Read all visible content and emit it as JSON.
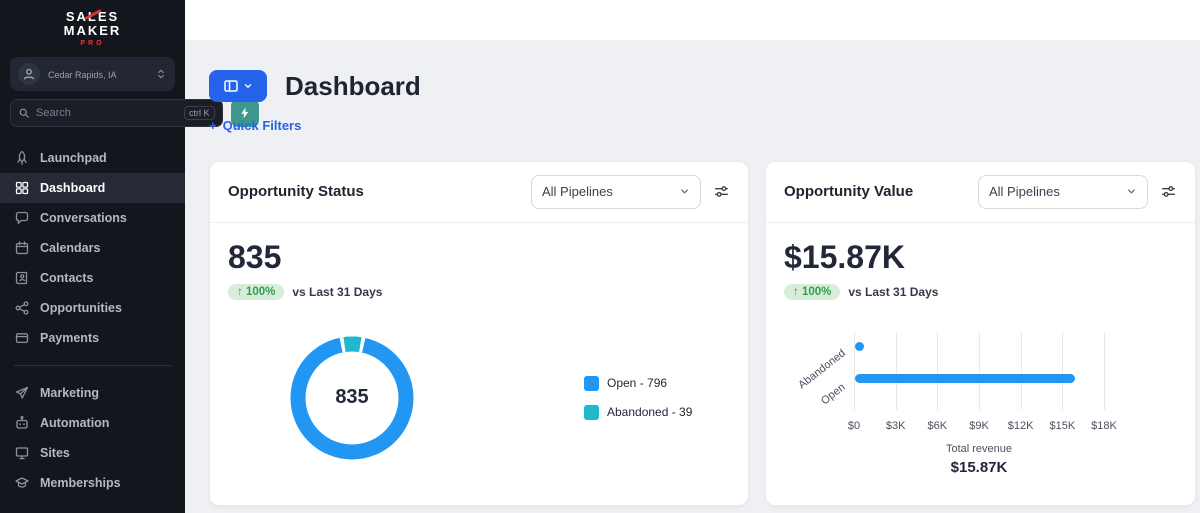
{
  "colors": {
    "accent_blue": "#2563eb",
    "chart_blue": "#2196f3",
    "chart_teal": "#1fb8cd",
    "badge_green_bg": "#d7edd9",
    "badge_green_text": "#2f9e4f",
    "teal_button": "#3f978d"
  },
  "sidebar": {
    "logo": {
      "line1": "SALES",
      "line2": "MAKER",
      "line3": "PRO"
    },
    "account": {
      "location": "Cedar Rapids, IA"
    },
    "search": {
      "placeholder": "Search",
      "shortcut": "ctrl K"
    },
    "nav": [
      {
        "label": "Launchpad",
        "icon": "rocket-icon"
      },
      {
        "label": "Dashboard",
        "icon": "grid-icon",
        "active": true
      },
      {
        "label": "Conversations",
        "icon": "chat-icon"
      },
      {
        "label": "Calendars",
        "icon": "calendar-icon"
      },
      {
        "label": "Contacts",
        "icon": "contacts-book-icon"
      },
      {
        "label": "Opportunities",
        "icon": "share-nodes-icon"
      },
      {
        "label": "Payments",
        "icon": "credit-card-icon"
      }
    ],
    "nav_secondary": [
      {
        "label": "Marketing",
        "icon": "send-icon"
      },
      {
        "label": "Automation",
        "icon": "robot-icon"
      },
      {
        "label": "Sites",
        "icon": "monitor-icon"
      },
      {
        "label": "Memberships",
        "icon": "graduation-cap-icon"
      }
    ]
  },
  "header": {
    "title": "Dashboard",
    "quick_filters_plus": "+",
    "quick_filters_label": "Quick Filters"
  },
  "cards": {
    "status": {
      "title": "Opportunity Status",
      "pipeline_filter": "All Pipelines",
      "metric": "835",
      "delta": "↑ 100%",
      "delta_caption": "vs Last 31 Days",
      "donut_center": "835",
      "legend": [
        {
          "label": "Open - 796"
        },
        {
          "label": "Abandoned - 39"
        }
      ]
    },
    "value": {
      "title": "Opportunity Value",
      "pipeline_filter": "All Pipelines",
      "metric": "$15.87K",
      "delta": "↑ 100%",
      "delta_caption": "vs Last 31 Days",
      "footer_label": "Total revenue",
      "footer_value": "$15.87K"
    }
  },
  "chart_data": [
    {
      "type": "pie",
      "title": "Opportunity Status",
      "labels": [
        "Open",
        "Abandoned"
      ],
      "values": [
        796,
        39
      ],
      "colors": [
        "#2196f3",
        "#1fb8cd"
      ],
      "center_total": 835,
      "legend_position": "right"
    },
    {
      "type": "bar",
      "orientation": "horizontal",
      "title": "Opportunity Value",
      "categories": [
        "Abandoned",
        "Open"
      ],
      "values": [
        39,
        15831
      ],
      "color": "#2196f3",
      "xlim": [
        0,
        18000
      ],
      "xticks": [
        "$0",
        "$3K",
        "$6K",
        "$9K",
        "$12K",
        "$15K",
        "$18K"
      ],
      "xlabel": "Total revenue",
      "total_label": "$15.87K",
      "grid": true
    }
  ]
}
